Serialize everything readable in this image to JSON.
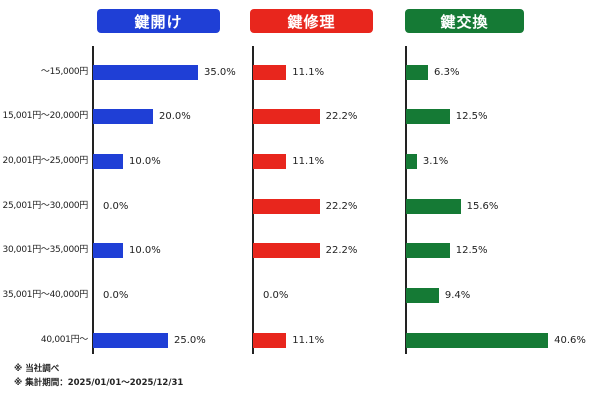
{
  "chart_data": [
    {
      "type": "bar",
      "title": "鍵開け",
      "categories": [
        "～15,000円",
        "15,001円～20,000円",
        "20,001円～25,000円",
        "25,001円～30,000円",
        "30,001円～35,000円",
        "35,001円～40,000円",
        "40,001円～"
      ],
      "values": [
        35.0,
        20.0,
        10.0,
        0.0,
        10.0,
        0.0,
        25.0
      ],
      "value_labels": [
        "35.0%",
        "20.0%",
        "10.0%",
        "0.0%",
        "10.0%",
        "0.0%",
        "25.0%"
      ],
      "color": "#1f3fd6",
      "orientation": "horizontal"
    },
    {
      "type": "bar",
      "title": "鍵修理",
      "categories": [
        "～15,000円",
        "15,001円～20,000円",
        "20,001円～25,000円",
        "25,001円～30,000円",
        "30,001円～35,000円",
        "35,001円～40,000円",
        "40,001円～"
      ],
      "values": [
        11.1,
        22.2,
        11.1,
        22.2,
        22.2,
        0.0,
        11.1
      ],
      "value_labels": [
        "11.1%",
        "22.2%",
        "11.1%",
        "22.2%",
        "22.2%",
        "0.0%",
        "11.1%"
      ],
      "color": "#e8261d",
      "orientation": "horizontal"
    },
    {
      "type": "bar",
      "title": "鍵交換",
      "categories": [
        "～15,000円",
        "15,001円～20,000円",
        "20,001円～25,000円",
        "25,001円～30,000円",
        "30,001円～35,000円",
        "35,001円～40,000円",
        "40,001円～"
      ],
      "values": [
        6.3,
        12.5,
        3.1,
        15.6,
        12.5,
        9.4,
        40.6
      ],
      "value_labels": [
        "6.3%",
        "12.5%",
        "3.1%",
        "15.6%",
        "12.5%",
        "9.4%",
        "40.6%"
      ],
      "color": "#157a35",
      "orientation": "horizontal"
    }
  ],
  "notes": [
    "※ 当社調べ",
    "※ 集計期間：2025/01/01～2025/12/31"
  ]
}
